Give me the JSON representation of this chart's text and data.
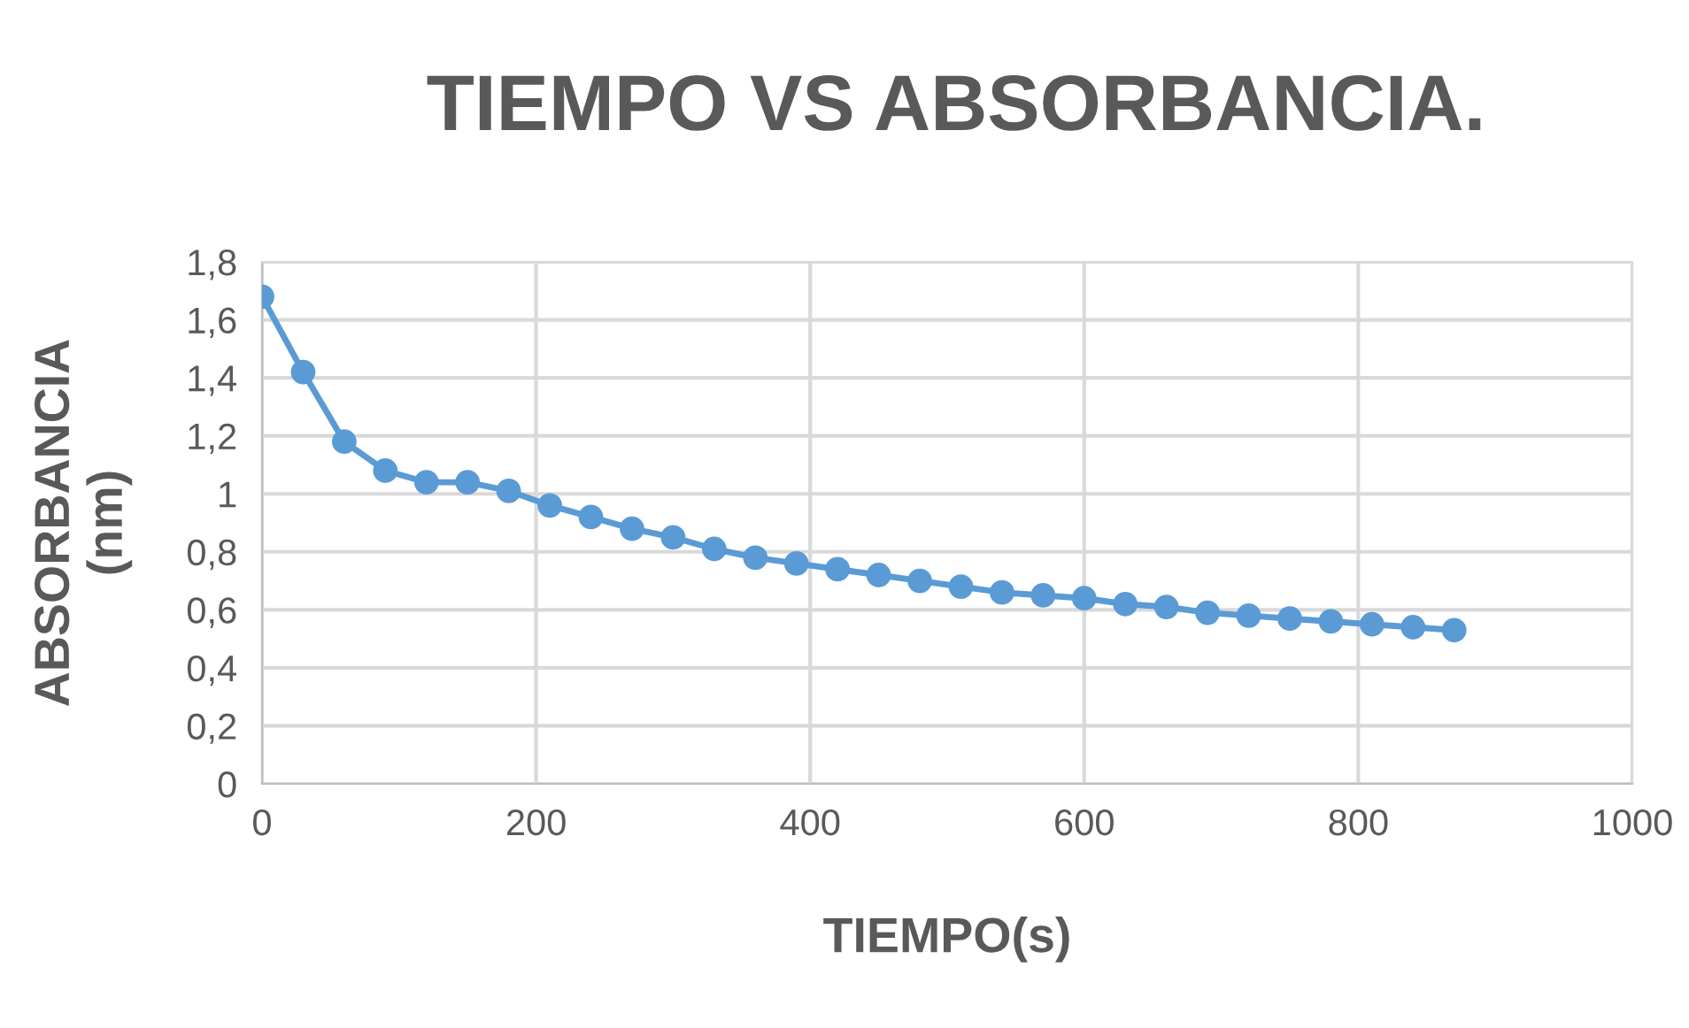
{
  "chart_data": {
    "type": "line",
    "title": "TIEMPO VS ABSORBANCIA.",
    "xlabel": "TIEMPO(s)",
    "ylabel": "ABSORBANCIA\n(nm)",
    "x": [
      0,
      30,
      60,
      90,
      120,
      150,
      180,
      210,
      240,
      270,
      300,
      330,
      360,
      390,
      420,
      450,
      480,
      510,
      540,
      570,
      600,
      630,
      660,
      690,
      720,
      750,
      780,
      810,
      840,
      870
    ],
    "series": [
      {
        "color": "#5b9bd5",
        "values": [
          1.68,
          1.42,
          1.18,
          1.08,
          1.04,
          1.04,
          1.01,
          0.96,
          0.92,
          0.88,
          0.85,
          0.81,
          0.78,
          0.76,
          0.74,
          0.72,
          0.7,
          0.68,
          0.66,
          0.65,
          0.64,
          0.62,
          0.61,
          0.59,
          0.58,
          0.57,
          0.56,
          0.55,
          0.54,
          0.53
        ]
      }
    ],
    "xlim": [
      0,
      1000
    ],
    "xticks": [
      0,
      200,
      400,
      600,
      800,
      1000
    ],
    "ylim": [
      0,
      1.8
    ],
    "yticks": [
      0,
      {
        "value": 0.2,
        "label": "0,2"
      },
      {
        "value": 0.4,
        "label": "0,4"
      },
      {
        "value": 0.6,
        "label": "0,6"
      },
      {
        "value": 0.8,
        "label": "0,8"
      },
      1,
      {
        "value": 1.2,
        "label": "1,2"
      },
      {
        "value": 1.4,
        "label": "1,4"
      },
      {
        "value": 1.6,
        "label": "1,6"
      },
      {
        "value": 1.8,
        "label": "1,8"
      }
    ],
    "grid": true,
    "marker": "circle",
    "line_style": "solid"
  }
}
